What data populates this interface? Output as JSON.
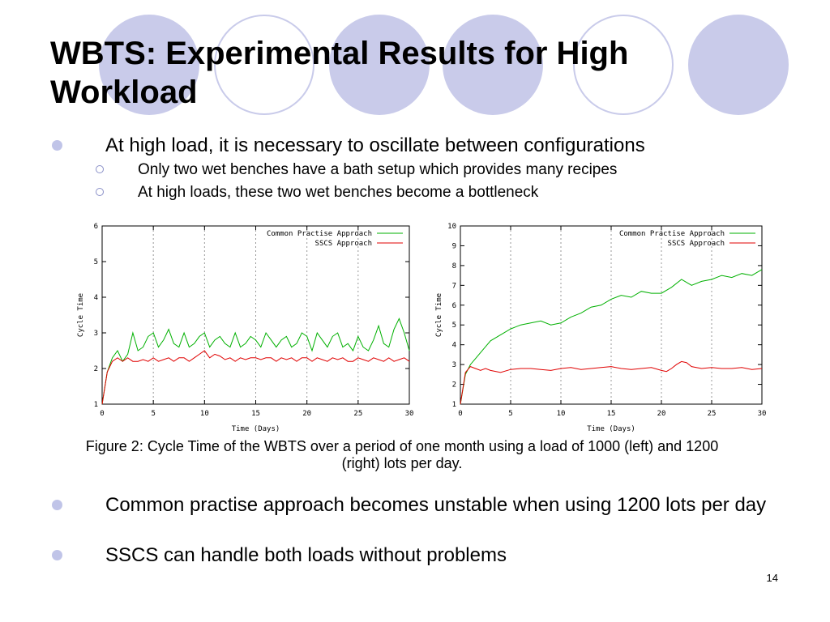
{
  "slide": {
    "title": "WBTS: Experimental Results for High Workload",
    "bullet1": "At high load, it is necessary to oscillate between configurations",
    "sub1": "Only two wet benches have a bath setup which provides many recipes",
    "sub2": "At high loads, these two wet benches become a bottleneck",
    "caption": "Figure 2: Cycle Time of the WBTS over a period of one month using a load of 1000 (left) and 1200 (right) lots per day.",
    "bullet2": "Common practise approach becomes unstable when using 1200 lots per day",
    "bullet3": "SSCS can handle both loads without problems",
    "page_number": "14",
    "colors": {
      "circle_fill": "#c9cbea",
      "circle_outline": "#c9cbea",
      "bullet": "#c0c4e8"
    }
  },
  "chart_data": [
    {
      "type": "line",
      "xlabel": "Time (Days)",
      "ylabel": "Cycle Time",
      "xlim": [
        0,
        30
      ],
      "ylim": [
        1,
        6
      ],
      "xticks": [
        0,
        5,
        10,
        15,
        20,
        25,
        30
      ],
      "yticks": [
        1,
        2,
        3,
        4,
        5,
        6
      ],
      "grid": "vertical dashed",
      "legend_position": "top-right",
      "series": [
        {
          "name": "Common Practise Approach",
          "color": "#00b000",
          "x": [
            0,
            0.5,
            1,
            1.5,
            2,
            2.5,
            3,
            3.5,
            4,
            4.5,
            5,
            5.5,
            6,
            6.5,
            7,
            7.5,
            8,
            8.5,
            9,
            9.5,
            10,
            10.5,
            11,
            11.5,
            12,
            12.5,
            13,
            13.5,
            14,
            14.5,
            15,
            15.5,
            16,
            16.5,
            17,
            17.5,
            18,
            18.5,
            19,
            19.5,
            20,
            20.5,
            21,
            21.5,
            22,
            22.5,
            23,
            23.5,
            24,
            24.5,
            25,
            25.5,
            26,
            26.5,
            27,
            27.5,
            28,
            28.5,
            29,
            29.5,
            30
          ],
          "y": [
            1.0,
            1.9,
            2.3,
            2.5,
            2.2,
            2.4,
            3.0,
            2.5,
            2.6,
            2.9,
            3.0,
            2.6,
            2.8,
            3.1,
            2.7,
            2.6,
            3.0,
            2.6,
            2.7,
            2.9,
            3.0,
            2.6,
            2.8,
            2.9,
            2.7,
            2.6,
            3.0,
            2.6,
            2.7,
            2.9,
            2.8,
            2.6,
            3.0,
            2.8,
            2.6,
            2.8,
            2.9,
            2.6,
            2.7,
            3.0,
            2.9,
            2.5,
            3.0,
            2.8,
            2.6,
            2.9,
            3.0,
            2.6,
            2.7,
            2.5,
            2.9,
            2.6,
            2.5,
            2.8,
            3.2,
            2.7,
            2.6,
            3.1,
            3.4,
            3.0,
            2.5
          ]
        },
        {
          "name": "SSCS Approach",
          "color": "#e00000",
          "x": [
            0,
            0.5,
            1,
            1.5,
            2,
            2.5,
            3,
            3.5,
            4,
            4.5,
            5,
            5.5,
            6,
            6.5,
            7,
            7.5,
            8,
            8.5,
            9,
            9.5,
            10,
            10.5,
            11,
            11.5,
            12,
            12.5,
            13,
            13.5,
            14,
            14.5,
            15,
            15.5,
            16,
            16.5,
            17,
            17.5,
            18,
            18.5,
            19,
            19.5,
            20,
            20.5,
            21,
            21.5,
            22,
            22.5,
            23,
            23.5,
            24,
            24.5,
            25,
            25.5,
            26,
            26.5,
            27,
            27.5,
            28,
            28.5,
            29,
            29.5,
            30
          ],
          "y": [
            1.0,
            1.9,
            2.2,
            2.3,
            2.2,
            2.3,
            2.2,
            2.2,
            2.25,
            2.2,
            2.3,
            2.2,
            2.25,
            2.3,
            2.2,
            2.3,
            2.3,
            2.2,
            2.3,
            2.4,
            2.5,
            2.3,
            2.4,
            2.35,
            2.25,
            2.3,
            2.2,
            2.3,
            2.25,
            2.3,
            2.3,
            2.25,
            2.3,
            2.3,
            2.2,
            2.3,
            2.25,
            2.3,
            2.2,
            2.3,
            2.3,
            2.2,
            2.3,
            2.25,
            2.2,
            2.3,
            2.25,
            2.3,
            2.2,
            2.2,
            2.3,
            2.25,
            2.2,
            2.3,
            2.25,
            2.2,
            2.3,
            2.2,
            2.25,
            2.3,
            2.2
          ]
        }
      ]
    },
    {
      "type": "line",
      "xlabel": "Time (Days)",
      "ylabel": "Cycle Time",
      "xlim": [
        0,
        30
      ],
      "ylim": [
        1,
        10
      ],
      "xticks": [
        0,
        5,
        10,
        15,
        20,
        25,
        30
      ],
      "yticks": [
        1,
        2,
        3,
        4,
        5,
        6,
        7,
        8,
        9,
        10
      ],
      "grid": "vertical dashed",
      "legend_position": "top-right",
      "series": [
        {
          "name": "Common Practise Approach",
          "color": "#00b000",
          "x": [
            0,
            0.5,
            1,
            1.5,
            2,
            2.5,
            3,
            4,
            5,
            6,
            7,
            8,
            9,
            10,
            11,
            12,
            13,
            14,
            15,
            16,
            17,
            18,
            19,
            20,
            21,
            22,
            23,
            24,
            25,
            26,
            27,
            28,
            29,
            30
          ],
          "y": [
            1.0,
            2.5,
            3.0,
            3.3,
            3.6,
            3.9,
            4.2,
            4.5,
            4.8,
            5.0,
            5.1,
            5.2,
            5.0,
            5.1,
            5.4,
            5.6,
            5.9,
            6.0,
            6.3,
            6.5,
            6.4,
            6.7,
            6.6,
            6.6,
            6.9,
            7.3,
            7.0,
            7.2,
            7.3,
            7.5,
            7.4,
            7.6,
            7.5,
            7.8
          ]
        },
        {
          "name": "SSCS Approach",
          "color": "#e00000",
          "x": [
            0,
            0.5,
            1,
            1.5,
            2,
            2.5,
            3,
            4,
            5,
            6,
            7,
            8,
            9,
            10,
            11,
            12,
            13,
            14,
            15,
            16,
            17,
            18,
            19,
            20,
            20.5,
            21,
            21.5,
            22,
            22.5,
            23,
            24,
            25,
            26,
            27,
            28,
            29,
            30
          ],
          "y": [
            1.0,
            2.6,
            2.9,
            2.8,
            2.7,
            2.8,
            2.7,
            2.6,
            2.75,
            2.8,
            2.8,
            2.75,
            2.7,
            2.8,
            2.85,
            2.75,
            2.8,
            2.85,
            2.9,
            2.8,
            2.75,
            2.8,
            2.85,
            2.7,
            2.65,
            2.8,
            3.0,
            3.15,
            3.1,
            2.9,
            2.8,
            2.85,
            2.8,
            2.8,
            2.85,
            2.75,
            2.8
          ]
        }
      ]
    }
  ]
}
